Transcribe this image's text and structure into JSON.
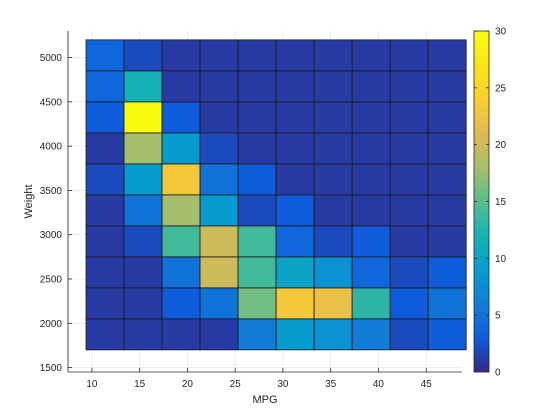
{
  "chart_data": {
    "type": "heatmap",
    "xlabel": "MPG",
    "ylabel": "Weight",
    "xlim": [
      7.5,
      48.75
    ],
    "ylim": [
      1450,
      5300
    ],
    "x_ticks": [
      10,
      15,
      20,
      25,
      30,
      35,
      40,
      45
    ],
    "y_ticks": [
      1500,
      2000,
      2500,
      3000,
      3500,
      4000,
      4500,
      5000
    ],
    "x_edges": [
      9,
      13,
      17,
      21,
      25,
      29,
      33,
      37,
      41,
      45,
      49
    ],
    "y_edges": [
      1700,
      2050,
      2400,
      2750,
      3100,
      3450,
      3800,
      4150,
      4500,
      4850,
      5200
    ],
    "bins_note_hidden": "",
    "counts": [
      [
        1,
        1,
        1,
        1,
        6,
        9,
        8,
        6,
        2,
        3
      ],
      [
        1,
        1,
        3,
        5,
        16,
        23,
        22,
        13,
        3,
        5
      ],
      [
        1,
        1,
        5,
        20,
        14,
        10,
        8,
        4,
        2,
        3
      ],
      [
        1,
        2,
        14,
        20,
        14,
        4,
        2,
        3,
        1,
        1
      ],
      [
        1,
        5,
        18,
        9,
        2,
        3,
        1,
        1,
        1,
        1
      ],
      [
        2,
        9,
        23,
        5,
        3,
        1,
        1,
        1,
        1,
        1
      ],
      [
        1,
        18,
        9,
        2,
        1,
        1,
        1,
        1,
        1,
        1
      ],
      [
        3,
        30,
        3,
        1,
        1,
        1,
        1,
        1,
        1,
        1
      ],
      [
        4,
        12,
        1,
        1,
        1,
        1,
        1,
        1,
        1,
        1
      ],
      [
        4,
        2,
        1,
        1,
        1,
        1,
        1,
        1,
        1,
        1
      ]
    ],
    "colorbar": {
      "min": 0,
      "max": 30,
      "ticks": [
        0,
        5,
        10,
        15,
        20,
        25,
        30
      ]
    },
    "colormap": "parula",
    "grid": true
  }
}
